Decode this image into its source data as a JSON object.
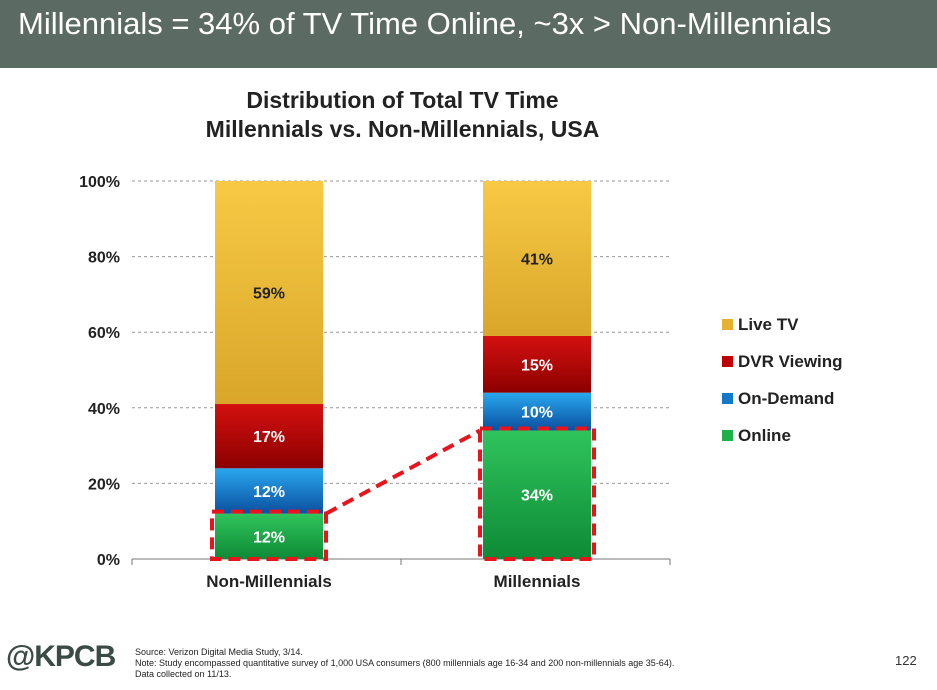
{
  "slide": {
    "headline": "Millennials = 34% of TV Time Online, ~3x > Non-Millennials",
    "logo_text": "@KPCB",
    "page_number": "122",
    "source_lines": [
      "Source: Verizon Digital Media Study, 3/14.",
      "Note: Study encompassed quantitative survey of 1,000 USA consumers (800 millennials age 16-34 and 200 non-millennials age 35-64).",
      "Data collected on 11/13."
    ]
  },
  "chart_data": {
    "type": "bar",
    "stacked": true,
    "title": "Distribution of Total TV Time",
    "subtitle": "Millennials vs. Non-Millennials, USA",
    "categories": [
      "Non-Millennials",
      "Millennials"
    ],
    "series": [
      {
        "name": "Online",
        "values": [
          12,
          34
        ],
        "labels": [
          "12%",
          "34%"
        ],
        "color": "#1fb04a"
      },
      {
        "name": "On-Demand",
        "values": [
          12,
          10
        ],
        "labels": [
          "12%",
          "10%"
        ],
        "color": "#1478c8"
      },
      {
        "name": "DVR Viewing",
        "values": [
          17,
          15
        ],
        "labels": [
          "17%",
          "15%"
        ],
        "color": "#c00000"
      },
      {
        "name": "Live TV",
        "values": [
          59,
          41
        ],
        "labels": [
          "59%",
          "41%"
        ],
        "color": "#e6b030"
      }
    ],
    "legend_order": [
      "Live TV",
      "DVR Viewing",
      "On-Demand",
      "Online"
    ],
    "y_ticks": [
      "0%",
      "20%",
      "40%",
      "60%",
      "80%",
      "100%"
    ],
    "ylim": [
      0,
      100
    ],
    "grid": true,
    "legend_position": "right",
    "annotation": "dashed red outline on Online segments connected by dashed line"
  }
}
